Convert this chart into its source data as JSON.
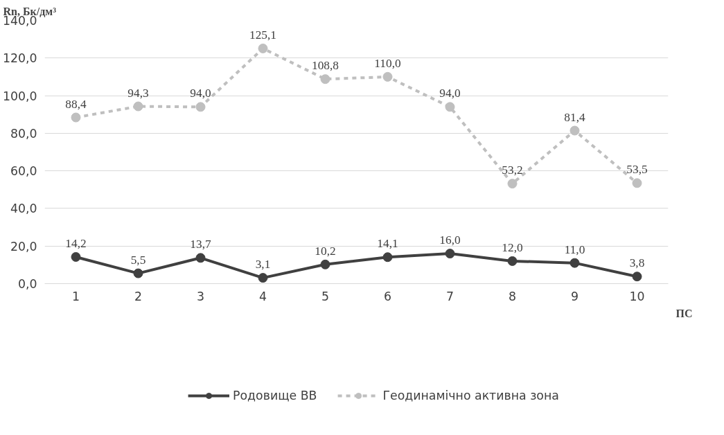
{
  "chart_data": {
    "type": "line",
    "ylabel": "Rn, Бк/дм³",
    "xlabel": "ПС",
    "categories": [
      "1",
      "2",
      "3",
      "4",
      "5",
      "6",
      "7",
      "8",
      "9",
      "10"
    ],
    "ylim": [
      0,
      140
    ],
    "yticks": [
      {
        "value": 0,
        "label": "0,0"
      },
      {
        "value": 20,
        "label": "20,0"
      },
      {
        "value": 40,
        "label": "40,0"
      },
      {
        "value": 60,
        "label": "60,0"
      },
      {
        "value": 80,
        "label": "80,0"
      },
      {
        "value": 100,
        "label": "100,0"
      },
      {
        "value": 120,
        "label": "120,0"
      },
      {
        "value": 140,
        "label": "140,0"
      }
    ],
    "grid": "y",
    "legend": "bottom",
    "marker": "circle",
    "series": [
      {
        "name": "Родовище ВВ",
        "color": "#404040",
        "line_style": "solid",
        "values": [
          14.2,
          5.5,
          13.7,
          3.1,
          10.2,
          14.1,
          16.0,
          12.0,
          11.0,
          3.8
        ],
        "value_labels": [
          "14,2",
          "5,5",
          "13,7",
          "3,1",
          "10,2",
          "14,1",
          "16,0",
          "12,0",
          "11,0",
          "3,8"
        ]
      },
      {
        "name": "Геодинамічно активна зона",
        "color": "#bfbfbf",
        "line_style": "dashed",
        "values": [
          88.4,
          94.3,
          94.0,
          125.1,
          108.8,
          110.0,
          94.0,
          53.2,
          81.4,
          53.5
        ],
        "value_labels": [
          "88,4",
          "94,3",
          "94,0",
          "125,1",
          "108,8",
          "110,0",
          "94,0",
          "53,2",
          "81,4",
          "53,5"
        ]
      }
    ]
  }
}
